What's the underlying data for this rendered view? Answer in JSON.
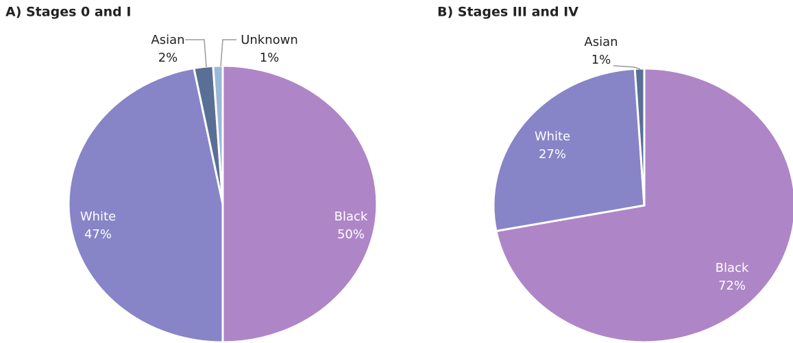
{
  "chart_data": [
    {
      "type": "pie",
      "title": "A) Stages 0 and I",
      "categories": [
        "Black",
        "White",
        "Asian",
        "Unknown"
      ],
      "values": [
        50,
        47,
        2,
        1
      ],
      "value_labels": [
        "50%",
        "47%",
        "2%",
        "1%"
      ],
      "colors": [
        "#ae86c7",
        "#8784c7",
        "#5a6f96",
        "#9ab8d8"
      ]
    },
    {
      "type": "pie",
      "title": "B) Stages III and IV",
      "categories": [
        "Black",
        "White",
        "Asian"
      ],
      "values": [
        72,
        27,
        1
      ],
      "value_labels": [
        "72%",
        "27%",
        "1%"
      ],
      "colors": [
        "#ae86c7",
        "#8784c7",
        "#5a6f96"
      ]
    }
  ]
}
